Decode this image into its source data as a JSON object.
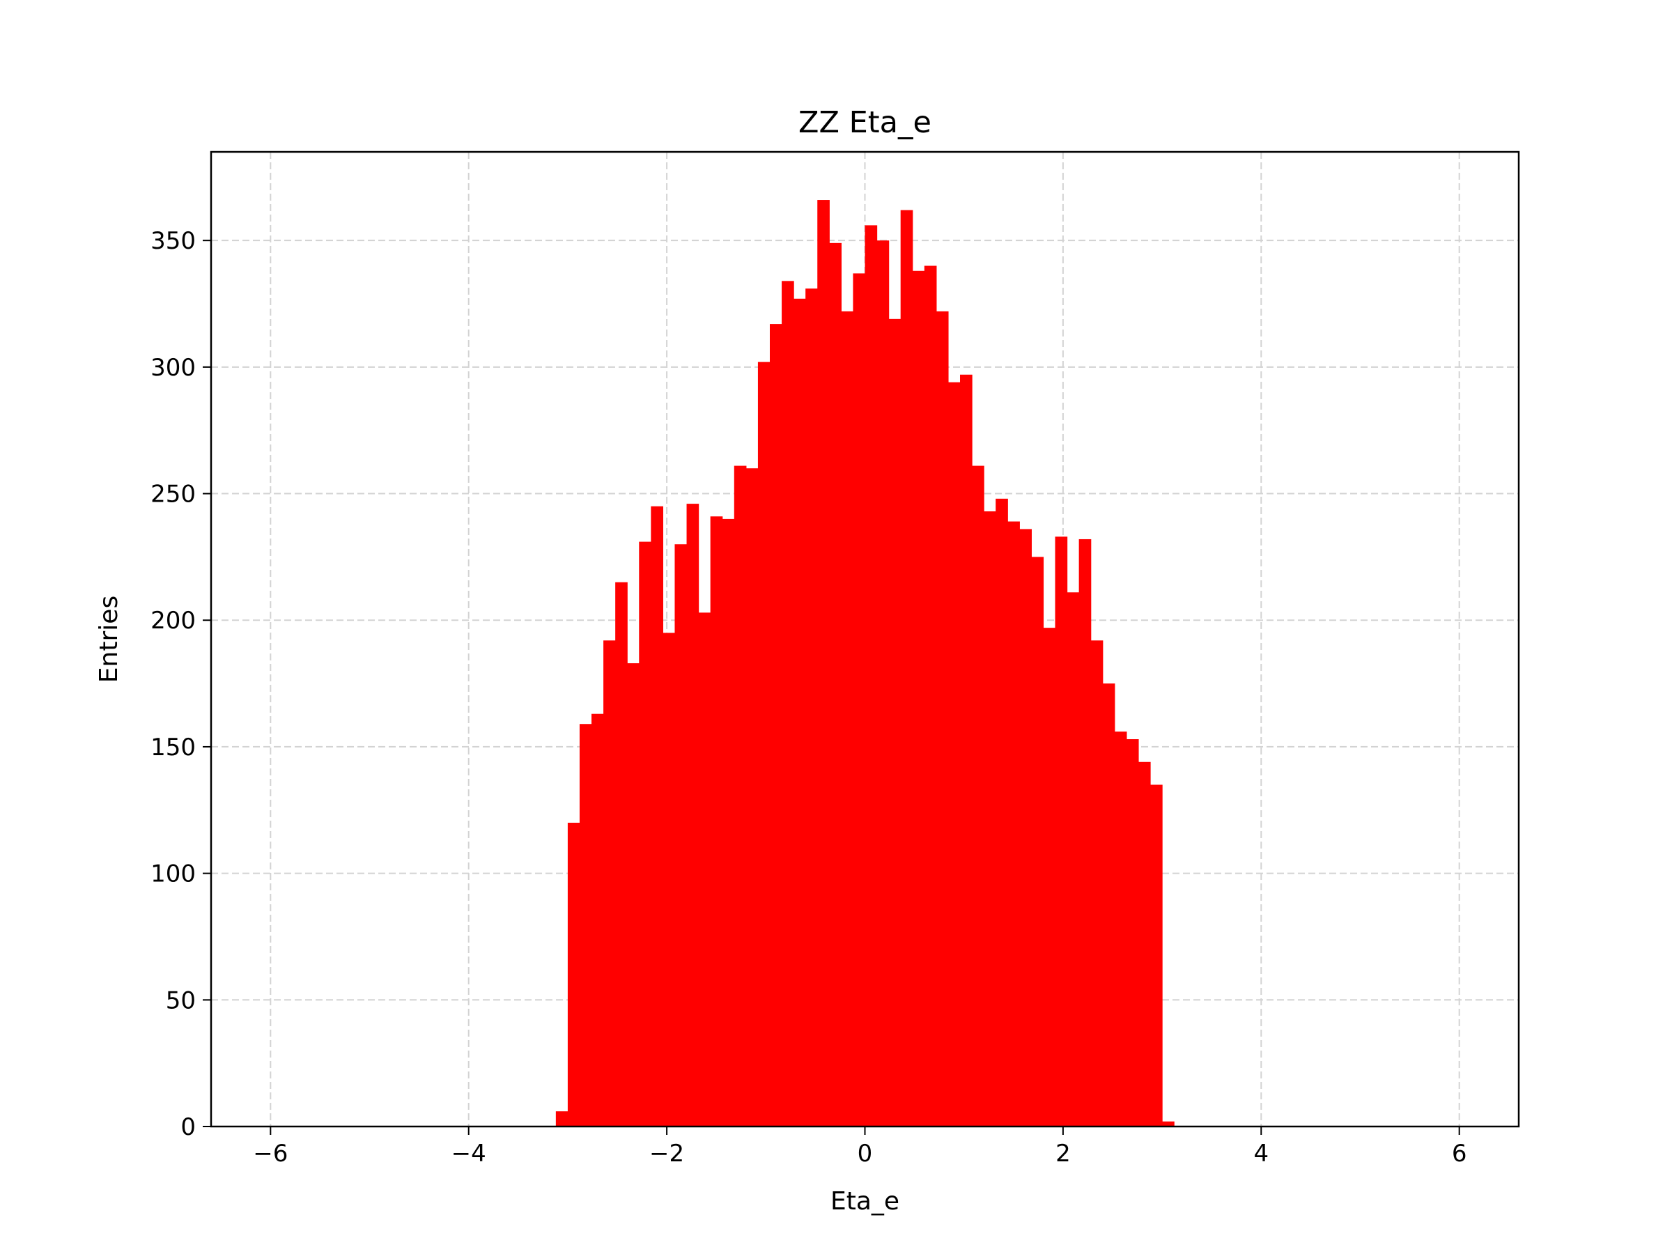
{
  "chart_data": {
    "type": "bar",
    "subtype": "histogram",
    "title": "ZZ Eta_e",
    "xlabel": "Eta_e",
    "ylabel": "Entries",
    "xlim": [
      -6.6,
      6.6
    ],
    "ylim": [
      0,
      385
    ],
    "xticks": [
      -6,
      -4,
      -2,
      0,
      2,
      4,
      6
    ],
    "xtick_labels": [
      "−6",
      "−4",
      "−2",
      "0",
      "2",
      "4",
      "6"
    ],
    "yticks": [
      0,
      50,
      100,
      150,
      200,
      250,
      300,
      350
    ],
    "ytick_labels": [
      "0",
      "50",
      "100",
      "150",
      "200",
      "250",
      "300",
      "350"
    ],
    "grid": true,
    "bar_color": "#ff0000",
    "bin_edges_start": -3.12,
    "bin_width": 0.12,
    "values": [
      6,
      120,
      159,
      163,
      192,
      215,
      183,
      231,
      245,
      195,
      230,
      246,
      203,
      241,
      240,
      261,
      260,
      302,
      317,
      334,
      327,
      331,
      366,
      349,
      322,
      337,
      356,
      350,
      319,
      362,
      338,
      340,
      322,
      294,
      297,
      261,
      243,
      248,
      239,
      236,
      225,
      197,
      233,
      211,
      232,
      192,
      175,
      156,
      153,
      144,
      135,
      2
    ]
  }
}
